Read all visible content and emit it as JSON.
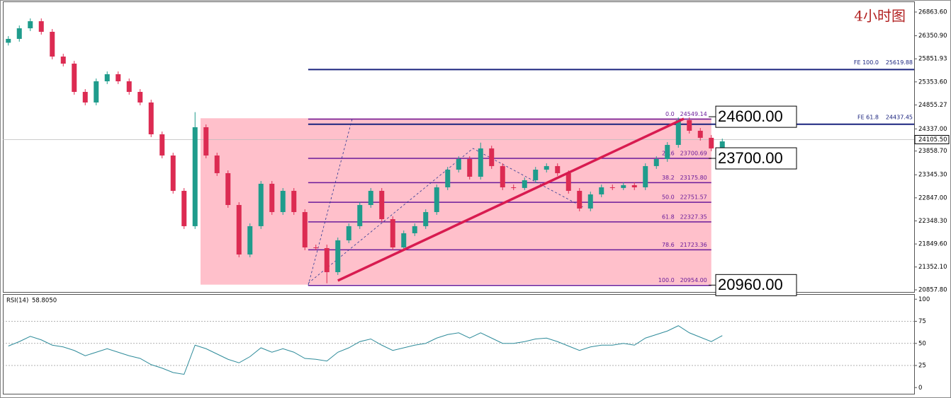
{
  "chart_data": [
    {
      "type": "candlestick",
      "title": "4小时图",
      "ylim": [
        20812,
        27093
      ],
      "yticks": [
        {
          "value": 26863.6,
          "label": "26863.60"
        },
        {
          "value": 26350.9,
          "label": "26350.90"
        },
        {
          "value": 25851.93,
          "label": "25851.93"
        },
        {
          "value": 25353.6,
          "label": "25353.60"
        },
        {
          "value": 24855.27,
          "label": "24855.27"
        },
        {
          "value": 24337,
          "label": "24337.00"
        },
        {
          "value": 23858.7,
          "label": "23858.70"
        },
        {
          "value": 23345.3,
          "label": "23345.30"
        },
        {
          "value": 22847,
          "label": "22847.00"
        },
        {
          "value": 22348.3,
          "label": "22348.30"
        },
        {
          "value": 21849.6,
          "label": "21849.60"
        },
        {
          "value": 21352.1,
          "label": "21352.10"
        },
        {
          "value": 20857.8,
          "label": "20857.80"
        }
      ],
      "up_color": "#1f9c8c",
      "down_color": "#dc2b52",
      "candles": [
        [
          26200,
          26343,
          26140,
          26283
        ],
        [
          26283,
          26572,
          26223,
          26512
        ],
        [
          26512,
          26725,
          26452,
          26665
        ],
        [
          26665,
          26725,
          26376,
          26436
        ],
        [
          26436,
          26496,
          25841,
          25901
        ],
        [
          25901,
          25961,
          25688,
          25748
        ],
        [
          25748,
          25808,
          25077,
          25137
        ],
        [
          25137,
          25197,
          24848,
          24908
        ],
        [
          24908,
          25426,
          24848,
          25366
        ],
        [
          25366,
          25579,
          25306,
          25519
        ],
        [
          25519,
          25579,
          25306,
          25366
        ],
        [
          25366,
          25426,
          25077,
          25137
        ],
        [
          25137,
          25197,
          24848,
          24908
        ],
        [
          24908,
          24968,
          24160,
          24220
        ],
        [
          24220,
          24280,
          23702,
          23762
        ],
        [
          23762,
          23822,
          22938,
          22998
        ],
        [
          22998,
          23058,
          22174,
          22234
        ],
        [
          22234,
          24700,
          22174,
          24373
        ],
        [
          24373,
          24433,
          23702,
          23762
        ],
        [
          23762,
          23822,
          23320,
          23380
        ],
        [
          23380,
          23440,
          22632,
          22692
        ],
        [
          22692,
          22752,
          21562,
          21622
        ],
        [
          21622,
          22294,
          21562,
          22234
        ],
        [
          22234,
          23211,
          22174,
          23151
        ],
        [
          23151,
          23211,
          22479,
          22539
        ],
        [
          22539,
          23058,
          22479,
          22998
        ],
        [
          22998,
          23058,
          22479,
          22539
        ],
        [
          22539,
          22599,
          21715,
          21775
        ],
        [
          21775,
          21835,
          21715,
          21760
        ],
        [
          21760,
          21835,
          21000,
          21240
        ],
        [
          21240,
          21988,
          21180,
          21928
        ],
        [
          21928,
          22294,
          21868,
          22234
        ],
        [
          22234,
          22752,
          22174,
          22692
        ],
        [
          22692,
          23058,
          22632,
          22998
        ],
        [
          22998,
          23058,
          22326,
          22386
        ],
        [
          22386,
          22446,
          21715,
          21775
        ],
        [
          21775,
          22141,
          21715,
          22081
        ],
        [
          22081,
          22294,
          22021,
          22234
        ],
        [
          22234,
          22599,
          22174,
          22539
        ],
        [
          22539,
          23134,
          22479,
          23074
        ],
        [
          23074,
          23516,
          23014,
          23456
        ],
        [
          23456,
          23745,
          23396,
          23685
        ],
        [
          23685,
          23745,
          23243,
          23303
        ],
        [
          23303,
          24040,
          23243,
          23915
        ],
        [
          23915,
          23975,
          23473,
          23533
        ],
        [
          23533,
          23593,
          23014,
          23074
        ],
        [
          23074,
          23134,
          23014,
          23060
        ],
        [
          23060,
          23287,
          23014,
          23227
        ],
        [
          23227,
          23516,
          23167,
          23456
        ],
        [
          23456,
          23593,
          23396,
          23533
        ],
        [
          23533,
          23593,
          23320,
          23380
        ],
        [
          23380,
          23440,
          22938,
          22998
        ],
        [
          22998,
          23058,
          22556,
          22616
        ],
        [
          22616,
          22981,
          22556,
          22921
        ],
        [
          22921,
          23134,
          22861,
          23074
        ],
        [
          23074,
          23134,
          23014,
          23060
        ],
        [
          23060,
          23180,
          23014,
          23120
        ],
        [
          23120,
          23180,
          23014,
          23074
        ],
        [
          23074,
          23593,
          23014,
          23533
        ],
        [
          23533,
          23745,
          23473,
          23685
        ],
        [
          23685,
          24051,
          23625,
          23991
        ],
        [
          23991,
          24586,
          23931,
          24526
        ],
        [
          24526,
          24586,
          24237,
          24297
        ],
        [
          24297,
          24357,
          24084,
          24144
        ],
        [
          24144,
          24204,
          23855,
          23915
        ],
        [
          23915,
          24127,
          23855,
          24067
        ]
      ],
      "last_price": {
        "value": 24105.5,
        "label": "24105.50"
      },
      "zone": {
        "top": 24567,
        "bottom": 20970,
        "start": 17.5,
        "end": 64,
        "color": "#ffc0cb"
      },
      "fib": {
        "start": 27.3,
        "end": 64,
        "color": "#6a1b9a",
        "levels": [
          {
            "ratio": "0.0",
            "price": 24549.14
          },
          {
            "ratio": "23.6",
            "price": 23700.69
          },
          {
            "ratio": "38.2",
            "price": {
              "value": 23175.8,
              "label": "23175.80"
            }
          },
          {
            "ratio": "50.0",
            "price": 22751.57
          },
          {
            "ratio": "61.8",
            "price": 22327.35
          },
          {
            "ratio": "78.6",
            "price": 21723.36
          },
          {
            "ratio": "100.0",
            "price": {
              "value": 20954,
              "label": "20954.00"
            }
          }
        ]
      },
      "extensions": {
        "start": 27.3,
        "color": "#1a237e",
        "levels": [
          {
            "name": "FE 100.0",
            "price": 25619.88
          },
          {
            "name": "FE 61.8",
            "price": 24437.45
          }
        ]
      },
      "markers": [
        {
          "value": 24600,
          "label": "24600.00"
        },
        {
          "value": 23700,
          "label": "23700.00"
        },
        {
          "value": 20960,
          "label": "20960.00"
        }
      ],
      "trendline": {
        "from": [
          30,
          21057
        ],
        "to": [
          61.5,
          24557
        ],
        "color": "#d81b50"
      },
      "dashed": [
        [
          [
            27.3,
            20954
          ],
          [
            31.3,
            24549
          ]
        ],
        [
          [
            27.3,
            21000
          ],
          [
            42.3,
            23915
          ],
          [
            52.3,
            22650
          ]
        ]
      ]
    },
    {
      "type": "line",
      "name": "RSI(14)",
      "reading": {
        "value": 58.805,
        "label": "58.8050"
      },
      "color": "#2e8b9a",
      "ylim": [
        -7,
        105
      ],
      "yticks": [
        0,
        25,
        50,
        75,
        100
      ],
      "levels": [
        25,
        50,
        75
      ],
      "values": [
        47,
        52,
        58,
        54,
        48,
        46,
        42,
        36,
        40,
        44,
        40,
        36,
        33,
        26,
        22,
        17,
        15,
        48,
        44,
        38,
        32,
        28,
        35,
        45,
        40,
        44,
        40,
        33,
        32,
        30,
        40,
        45,
        52,
        55,
        48,
        42,
        45,
        48,
        50,
        56,
        60,
        62,
        56,
        62,
        56,
        50,
        50,
        52,
        55,
        56,
        52,
        47,
        42,
        46,
        48,
        48,
        50,
        48,
        56,
        60,
        64,
        70,
        62,
        57,
        52,
        58.8
      ]
    }
  ]
}
